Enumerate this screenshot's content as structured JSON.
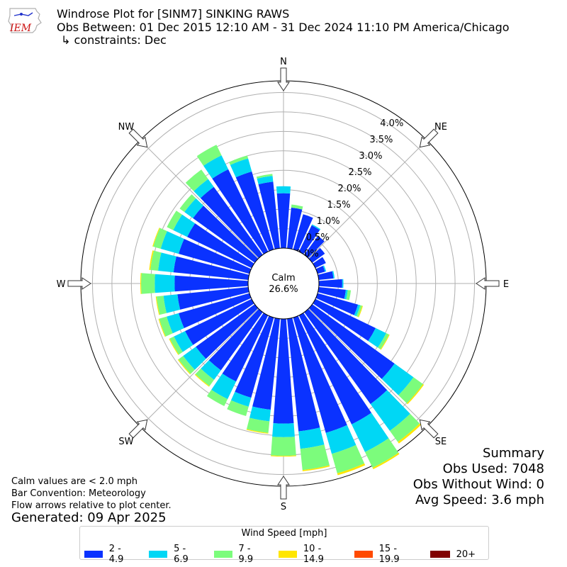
{
  "header": {
    "title": "Windrose Plot for [SINM7] SINKING RAWS",
    "subtitle": "Obs Between: 01 Dec 2015 12:10 AM - 31 Dec 2024 11:10 PM America/Chicago",
    "constraints": "↳ constraints: Dec",
    "logo_text": "IEM"
  },
  "notes": {
    "calm_note": "Calm values are < 2.0 mph",
    "bar_convention": "Bar Convention: Meteorology",
    "flow_arrows": "Flow arrows relative to plot center.",
    "generated": "Generated: 09 Apr 2025"
  },
  "summary": {
    "heading": "Summary",
    "obs_used": "Obs Used: 7048",
    "obs_without_wind": "Obs Without Wind: 0",
    "avg_speed": "Avg Speed: 3.6 mph"
  },
  "legend": {
    "title": "Wind Speed [mph]",
    "items": [
      {
        "label": "2 - 4.9",
        "color": "#0a32ff"
      },
      {
        "label": "5 - 6.9",
        "color": "#00d7f5"
      },
      {
        "label": "7 - 9.9",
        "color": "#7cfc7c"
      },
      {
        "label": "10 - 14.9",
        "color": "#ffe600"
      },
      {
        "label": "15 - 19.9",
        "color": "#ff4a00"
      },
      {
        "label": "20+",
        "color": "#800000"
      }
    ]
  },
  "chart_data": {
    "type": "windrose",
    "calm_label": "Calm",
    "calm_value": "26.6%",
    "direction_labels": [
      "N",
      "NE",
      "E",
      "SE",
      "S",
      "SW",
      "W",
      "NW"
    ],
    "radial_ticks": [
      "0.0%",
      "0.5%",
      "1.0%",
      "1.5%",
      "2.0%",
      "2.5%",
      "3.0%",
      "3.5%",
      "4.0%"
    ],
    "radial_max": 4.3,
    "sector_centers_deg": [
      0,
      10,
      20,
      30,
      40,
      50,
      60,
      70,
      80,
      90,
      100,
      110,
      120,
      130,
      140,
      150,
      160,
      170,
      180,
      190,
      200,
      210,
      220,
      230,
      240,
      250,
      260,
      270,
      280,
      290,
      300,
      310,
      320,
      330,
      340,
      350
    ],
    "series": [
      {
        "name": "2 - 4.9",
        "color": "#0a32ff",
        "values": [
          1.41,
          1.05,
          0.94,
          0.75,
          0.6,
          0.4,
          0.3,
          0.2,
          0.38,
          0.6,
          0.7,
          1.08,
          1.72,
          2.61,
          2.91,
          3.11,
          3.08,
          2.91,
          2.69,
          2.35,
          2.14,
          1.89,
          1.84,
          1.87,
          1.9,
          1.89,
          1.83,
          1.89,
          1.93,
          1.89,
          1.84,
          1.96,
          2.15,
          2.35,
          2.08,
          1.72
        ]
      },
      {
        "name": "5 - 6.9",
        "color": "#00d7f5",
        "values": [
          0.18,
          0.0,
          0.0,
          0.03,
          0.0,
          0.0,
          0.0,
          0.03,
          0.03,
          0.03,
          0.05,
          0.06,
          0.3,
          0.6,
          0.85,
          0.79,
          0.56,
          0.45,
          0.35,
          0.3,
          0.24,
          0.5,
          0.3,
          0.4,
          0.32,
          0.32,
          0.36,
          0.51,
          0.4,
          0.48,
          0.4,
          0.27,
          0.25,
          0.4,
          0.35,
          0.15
        ]
      },
      {
        "name": "7 - 9.9",
        "color": "#7cfc7c",
        "values": [
          0.0,
          0.08,
          0.0,
          0.0,
          0.0,
          0.0,
          0.0,
          0.0,
          0.0,
          0.0,
          0.08,
          0.05,
          0.08,
          0.3,
          0.35,
          0.45,
          0.52,
          0.55,
          0.48,
          0.3,
          0.25,
          0.2,
          0.2,
          0.15,
          0.12,
          0.2,
          0.18,
          0.35,
          0.2,
          0.2,
          0.18,
          0.15,
          0.3,
          0.3,
          0.08,
          0.05
        ]
      },
      {
        "name": "10 - 14.9",
        "color": "#ffe600",
        "values": [
          0,
          0,
          0,
          0,
          0,
          0,
          0,
          0,
          0,
          0,
          0,
          0.02,
          0.02,
          0.03,
          0.05,
          0.04,
          0.05,
          0.03,
          0.02,
          0.02,
          0,
          0,
          0.02,
          0.02,
          0.02,
          0.02,
          0.02,
          0.02,
          0.03,
          0.02,
          0,
          0,
          0,
          0,
          0,
          0
        ]
      },
      {
        "name": "15 - 19.9",
        "color": "#ff4a00",
        "values": [
          0,
          0,
          0,
          0,
          0,
          0,
          0,
          0,
          0,
          0,
          0,
          0,
          0,
          0,
          0,
          0,
          0,
          0,
          0,
          0,
          0,
          0,
          0,
          0,
          0,
          0,
          0,
          0,
          0,
          0,
          0,
          0,
          0,
          0,
          0,
          0
        ]
      },
      {
        "name": "20+",
        "color": "#800000",
        "values": [
          0,
          0,
          0,
          0,
          0,
          0,
          0,
          0,
          0,
          0,
          0,
          0,
          0,
          0,
          0,
          0,
          0,
          0,
          0,
          0,
          0,
          0,
          0,
          0,
          0,
          0,
          0,
          0,
          0,
          0,
          0,
          0,
          0,
          0,
          0,
          0
        ]
      }
    ]
  }
}
